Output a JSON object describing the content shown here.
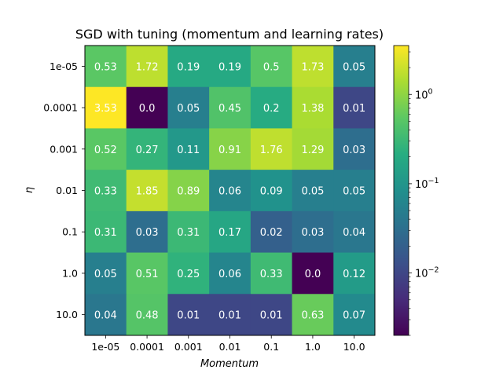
{
  "chart_data": {
    "type": "heatmap",
    "title": "SGD with tuning (momentum and learning rates)",
    "xlabel": "Momentum",
    "ylabel": "η",
    "x_categories": [
      "1e-05",
      "0.0001",
      "0.001",
      "0.01",
      "0.1",
      "1.0",
      "10.0"
    ],
    "y_categories": [
      "1e-05",
      "0.0001",
      "0.001",
      "0.01",
      "0.1",
      "1.0",
      "10.0"
    ],
    "values": [
      [
        0.53,
        1.72,
        0.19,
        0.19,
        0.5,
        1.73,
        0.05
      ],
      [
        3.53,
        0.002,
        0.05,
        0.45,
        0.2,
        1.38,
        0.01
      ],
      [
        0.52,
        0.27,
        0.11,
        0.91,
        1.76,
        1.29,
        0.03
      ],
      [
        0.33,
        1.85,
        0.89,
        0.06,
        0.09,
        0.05,
        0.05
      ],
      [
        0.31,
        0.03,
        0.31,
        0.17,
        0.02,
        0.03,
        0.04
      ],
      [
        0.05,
        0.51,
        0.25,
        0.06,
        0.33,
        0.002,
        0.12
      ],
      [
        0.04,
        0.48,
        0.01,
        0.01,
        0.01,
        0.63,
        0.07
      ]
    ],
    "cell_labels": [
      [
        "0.53",
        "1.72",
        "0.19",
        "0.19",
        "0.5",
        "1.73",
        "0.05"
      ],
      [
        "3.53",
        "0.0",
        "0.05",
        "0.45",
        "0.2",
        "1.38",
        "0.01"
      ],
      [
        "0.52",
        "0.27",
        "0.11",
        "0.91",
        "1.76",
        "1.29",
        "0.03"
      ],
      [
        "0.33",
        "1.85",
        "0.89",
        "0.06",
        "0.09",
        "0.05",
        "0.05"
      ],
      [
        "0.31",
        "0.03",
        "0.31",
        "0.17",
        "0.02",
        "0.03",
        "0.04"
      ],
      [
        "0.05",
        "0.51",
        "0.25",
        "0.06",
        "0.33",
        "0.0",
        "0.12"
      ],
      [
        "0.04",
        "0.48",
        "0.01",
        "0.01",
        "0.01",
        "0.63",
        "0.07"
      ]
    ],
    "colormap": "viridis",
    "color_scale": "log",
    "color_range": [
      0.002,
      3.53
    ],
    "colorbar_ticks": [
      {
        "value": 0.01,
        "base": "10",
        "exp": "−2"
      },
      {
        "value": 0.1,
        "base": "10",
        "exp": "−1"
      },
      {
        "value": 1,
        "base": "10",
        "exp": "0"
      }
    ],
    "grid": false,
    "legend": "colorbar-right"
  }
}
